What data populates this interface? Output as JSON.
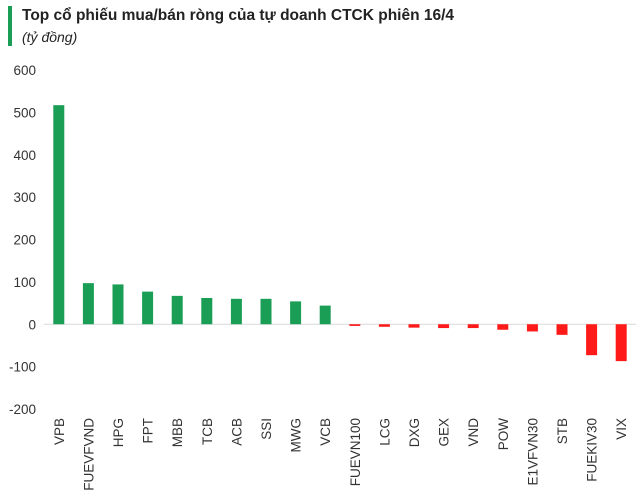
{
  "header": {
    "title": "Top cổ phiếu mua/bán ròng của tự doanh CTCK phiên 16/4",
    "subtitle": "(tỷ đồng)"
  },
  "colors": {
    "positive": "#1a9e55",
    "negative": "#ff1a1a",
    "accent": "#1a9e55"
  },
  "chart_data": {
    "type": "bar",
    "title": "Top cổ phiếu mua/bán ròng của tự doanh CTCK phiên 16/4",
    "subtitle": "(tỷ đồng)",
    "xlabel": "",
    "ylabel": "",
    "ylim": [
      -200,
      600
    ],
    "yticks": [
      -200,
      -100,
      0,
      100,
      200,
      300,
      400,
      500,
      600
    ],
    "grid": false,
    "legend": "none",
    "categories": [
      "VPB",
      "FUEVFVND",
      "HPG",
      "FPT",
      "MBB",
      "TCB",
      "ACB",
      "SSI",
      "MWG",
      "VCB",
      "FUEVN100",
      "LCG",
      "DXG",
      "GEX",
      "VND",
      "POW",
      "E1VFVN30",
      "STB",
      "FUEKIV30",
      "VIX"
    ],
    "values": [
      517,
      97,
      94,
      77,
      67,
      62,
      60,
      60,
      54,
      44,
      -4,
      -6,
      -8,
      -9,
      -9,
      -13,
      -17,
      -25,
      -73,
      -87
    ]
  }
}
